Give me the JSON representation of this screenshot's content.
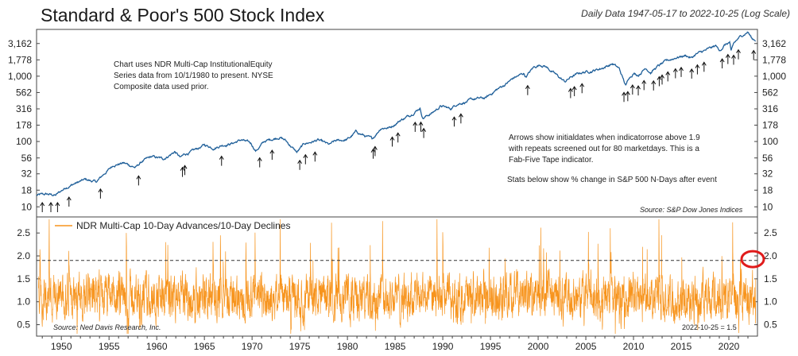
{
  "header": {
    "title": "Standard & Poor's 500 Stock Index",
    "subtitle": "Daily Data 1947-05-17 to 2022-10-25 (Log Scale)"
  },
  "upper_notes": {
    "left": [
      "Chart uses  NDR Multi-Cap InstitutionalEquity",
      "Series data  from 10/1/1980 to present. NYSE",
      "Composite data used prior."
    ],
    "right": [
      "Arrows show  initialdates  when indicatorrose above 1.9",
      "with repeats  screened out for 80 marketdays. This is a",
      "Fab-Five Tape indicator."
    ],
    "stats": "Stats below show % change in S&P 500 N-Days after event",
    "source": "Source:      S&P Dow Jones Indices"
  },
  "lower_notes": {
    "legend": "NDR Multi-Cap 10-Day Advances/10-Day Declines",
    "source": "Source:       Ned Davis Research, Inc.",
    "latest": "2022-10-25 = 1.5"
  },
  "colors": {
    "sp500_line": "#1f5f99",
    "indicator_line": "#f7941d",
    "threshold_line": "#333333",
    "highlight_circle": "#e01b1b",
    "axes": "#444444"
  },
  "chart_data": [
    {
      "type": "line",
      "name": "Standard & Poor's 500 Stock Index",
      "scale": "log",
      "ylim": [
        7,
        5200
      ],
      "xlim": [
        1947.4,
        2023.0
      ],
      "yticks": [
        10,
        18,
        32,
        56,
        100,
        178,
        316,
        562,
        1000,
        1778,
        3162
      ],
      "ytick_labels": [
        "10",
        "18",
        "32",
        "56",
        "100",
        "178",
        "316",
        "562",
        "1,000",
        "1,778",
        "3,162"
      ],
      "x": [
        1947.4,
        1948.5,
        1949.4,
        1950.5,
        1951.5,
        1952.5,
        1953.7,
        1954.5,
        1955.5,
        1956.5,
        1957.8,
        1958.5,
        1959.5,
        1960.7,
        1961.9,
        1962.5,
        1962.9,
        1963.9,
        1965.0,
        1966.0,
        1966.8,
        1967.9,
        1968.9,
        1969.9,
        1970.4,
        1971.3,
        1972.9,
        1973.5,
        1974.7,
        1975.5,
        1976.9,
        1978.1,
        1978.7,
        1979.9,
        1980.2,
        1980.9,
        1981.5,
        1982.6,
        1983.5,
        1984.5,
        1985.5,
        1986.5,
        1987.6,
        1987.9,
        1988.9,
        1989.8,
        1990.8,
        1991.5,
        1992.5,
        1993.5,
        1994.5,
        1995.5,
        1996.5,
        1997.5,
        1998.5,
        1998.7,
        1999.5,
        2000.2,
        2000.7,
        2001.7,
        2002.8,
        2003.5,
        2004.5,
        2005.5,
        2006.5,
        2007.8,
        2008.5,
        2009.2,
        2009.5,
        2010.0,
        2010.5,
        2011.3,
        2011.8,
        2012.5,
        2013.5,
        2014.5,
        2015.5,
        2016.1,
        2016.5,
        2017.5,
        2018.7,
        2018.98,
        2019.5,
        2020.1,
        2020.23,
        2020.5,
        2021.0,
        2021.5,
        2021.99,
        2022.45,
        2022.8
      ],
      "y": [
        15,
        15.5,
        15,
        20,
        23,
        26,
        24,
        32,
        44,
        47,
        40,
        50,
        58,
        54,
        70,
        56,
        63,
        72,
        88,
        80,
        88,
        94,
        106,
        92,
        72,
        100,
        118,
        104,
        68,
        92,
        105,
        88,
        100,
        107,
        112,
        140,
        128,
        108,
        162,
        165,
        210,
        250,
        330,
        230,
        275,
        350,
        315,
        380,
        410,
        450,
        460,
        600,
        740,
        950,
        1100,
        980,
        1350,
        1500,
        1450,
        1100,
        820,
        980,
        1130,
        1200,
        1300,
        1550,
        1300,
        700,
        950,
        1120,
        1050,
        1350,
        1150,
        1400,
        1700,
        1950,
        2080,
        1900,
        2150,
        2450,
        2900,
        2400,
        2950,
        3300,
        2300,
        3100,
        3750,
        4300,
        4800,
        3700,
        3600
      ]
    },
    {
      "type": "line",
      "name": "NDR Multi-Cap 10-Day Advances/10-Day Declines",
      "ylim": [
        0.25,
        2.85
      ],
      "xlim": [
        1947.4,
        2023.0
      ],
      "yticks": [
        0.5,
        1.0,
        1.5,
        2.0,
        2.5
      ],
      "ytick_labels": [
        "0.5",
        "1.0",
        "1.5",
        "2.0",
        "2.5"
      ],
      "threshold": 1.9,
      "latest_value": 1.5,
      "range_note": "values oscillate mostly between 0.5 and 2.0 around a mean near 1.1"
    }
  ],
  "arrows_years": [
    1948.0,
    1948.9,
    1949.6,
    1950.8,
    1954.1,
    1958.1,
    1962.7,
    1962.95,
    1966.8,
    1970.8,
    1972.1,
    1975.0,
    1975.6,
    1976.6,
    1982.7,
    1982.9,
    1984.7,
    1985.3,
    1987.1,
    1987.7,
    1988.0,
    1991.2,
    1991.9,
    1998.9,
    2003.4,
    2003.8,
    2004.6,
    2009.0,
    2009.4,
    2009.9,
    2010.5,
    2011.1,
    2012.1,
    2012.7,
    2013.0,
    2013.6,
    2014.4,
    2015.0,
    2016.1,
    2016.7,
    2017.4,
    2019.3,
    2019.9,
    2020.5,
    2021.0,
    2022.6
  ],
  "x_axis": {
    "ticks": [
      1950,
      1955,
      1960,
      1965,
      1970,
      1975,
      1980,
      1985,
      1990,
      1995,
      2000,
      2005,
      2010,
      2015,
      2020
    ],
    "labels": [
      "1950",
      "1955",
      "1960",
      "1965",
      "1970",
      "1975",
      "1980",
      "1985",
      "1990",
      "1995",
      "2000",
      "2005",
      "2010",
      "2015",
      "2020"
    ]
  }
}
